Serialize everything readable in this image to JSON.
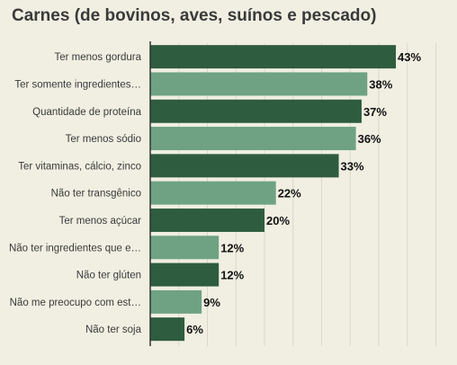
{
  "title": "Carnes (de bovinos, aves, suínos e pescado)",
  "colors": {
    "dark": "#2e5c3e",
    "light": "#6ea283",
    "grid": "#d9d8cb",
    "axis": "#333333"
  },
  "chart_data": {
    "type": "bar",
    "orientation": "horizontal",
    "title": "Carnes (de bovinos, aves, suínos e pescado)",
    "categories": [
      "Ter menos gordura",
      "Ter somente ingredientes…",
      "Quantidade de proteína",
      "Ter menos sódio",
      "Ter vitaminas, cálcio, zinco",
      "Não ter transgênico",
      "Ter menos açúcar",
      "Não ter ingredientes que e…",
      "Não ter glúten",
      "Não me preocupo com est…",
      "Não ter soja"
    ],
    "values": [
      43,
      38,
      37,
      36,
      33,
      22,
      20,
      12,
      12,
      9,
      6
    ],
    "value_labels": [
      "43%",
      "38%",
      "37%",
      "36%",
      "33%",
      "22%",
      "20%",
      "12%",
      "12%",
      "9%",
      "6%"
    ],
    "unit": "%",
    "xlim": [
      0,
      50
    ],
    "grid": true,
    "legend": "none"
  }
}
